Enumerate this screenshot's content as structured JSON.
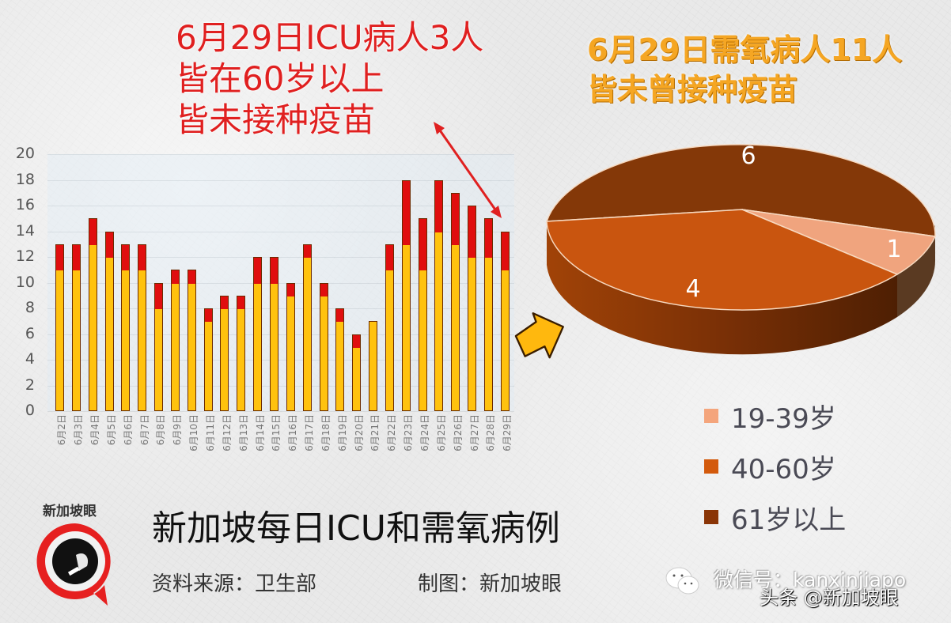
{
  "headline_icu": {
    "line1": "6月29日ICU病人3人",
    "line2": "皆在60岁以上",
    "line3": "皆未接种疫苗"
  },
  "headline_oxygen": {
    "line1": "6月29日需氧病人11人",
    "line2": "皆未曾接种疫苗"
  },
  "footer": {
    "logo_text": "新加坡眼",
    "title": "新加坡每日ICU和需氧病例",
    "source": "资料来源：卫生部",
    "made_by": "制图：新加坡眼",
    "wechat": "微信号：kanxinjiapo",
    "watermark": "头条 @新加坡眼"
  },
  "colors": {
    "icu_red": "#e00e0e",
    "oxygen_yellow": "#ffc20e",
    "pie_19_39": "#f4a57c",
    "pie_40_60": "#c9550f",
    "pie_61_plus": "#7e3208"
  },
  "chart_data": [
    {
      "type": "bar",
      "stacked": true,
      "title": "新加坡每日ICU和需氧病例",
      "xlabel": "",
      "ylabel": "",
      "ylim": [
        0,
        20
      ],
      "yticks": [
        0,
        2,
        4,
        6,
        8,
        10,
        12,
        14,
        16,
        18,
        20
      ],
      "grid": true,
      "categories": [
        "6月2日",
        "6月3日",
        "6月4日",
        "6月5日",
        "6月6日",
        "6月7日",
        "6月8日",
        "6月9日",
        "6月10日",
        "6月11日",
        "6月12日",
        "6月13日",
        "6月14日",
        "6月15日",
        "6月16日",
        "6月17日",
        "6月18日",
        "6月19日",
        "6月20日",
        "6月21日",
        "6月22日",
        "6月23日",
        "6月24日",
        "6月25日",
        "6月26日",
        "6月27日",
        "6月28日",
        "6月29日"
      ],
      "series": [
        {
          "name": "需氧",
          "color": "#ffc20e",
          "values": [
            11,
            11,
            13,
            12,
            11,
            11,
            8,
            10,
            10,
            7,
            8,
            8,
            10,
            10,
            9,
            12,
            9,
            7,
            5,
            7,
            11,
            13,
            11,
            14,
            13,
            12,
            12,
            11
          ]
        },
        {
          "name": "ICU",
          "color": "#e00e0e",
          "values": [
            2,
            2,
            2,
            2,
            2,
            2,
            2,
            1,
            1,
            1,
            1,
            1,
            2,
            2,
            1,
            1,
            1,
            1,
            1,
            0,
            2,
            5,
            4,
            4,
            4,
            4,
            3,
            3
          ]
        }
      ],
      "totals": [
        13,
        13,
        15,
        14,
        13,
        13,
        10,
        11,
        11,
        8,
        9,
        9,
        12,
        12,
        10,
        13,
        10,
        8,
        6,
        7,
        13,
        18,
        15,
        18,
        17,
        16,
        15,
        14
      ],
      "annotation": "6月29日ICU病人3人 皆在60岁以上 皆未接种疫苗"
    },
    {
      "type": "pie",
      "title": "6月29日需氧病人11人 皆未曾接种疫苗",
      "categories": [
        "19-39岁",
        "40-60岁",
        "61岁以上"
      ],
      "values": [
        1,
        4,
        6
      ],
      "colors": [
        "#f4a57c",
        "#c9550f",
        "#7e3208"
      ],
      "legend_position": "right-bottom",
      "data_labels": [
        "1",
        "4",
        "6"
      ]
    }
  ]
}
